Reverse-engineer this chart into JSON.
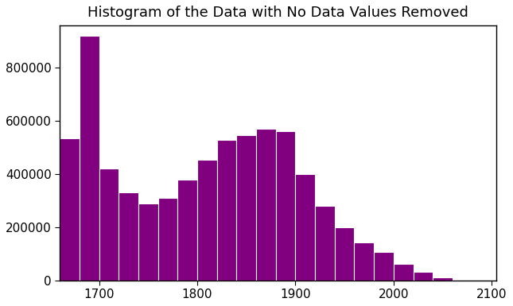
{
  "title": "Histogram of the Data with No Data Values Removed",
  "bar_color": "#800080",
  "edge_color": "white",
  "xlim": [
    1660,
    2105
  ],
  "ylim": [
    0,
    960000
  ],
  "bin_width": 20,
  "bins_left": [
    1660,
    1680,
    1700,
    1720,
    1740,
    1760,
    1780,
    1800,
    1820,
    1840,
    1860,
    1880,
    1900,
    1920,
    1940,
    1960,
    1980,
    2000,
    2020,
    2040,
    2060,
    2080
  ],
  "heights": [
    535000,
    920000,
    420000,
    330000,
    290000,
    310000,
    380000,
    455000,
    530000,
    548000,
    572000,
    562000,
    400000,
    280000,
    200000,
    143000,
    106000,
    63000,
    33000,
    10000,
    0,
    0
  ],
  "yticks": [
    0,
    200000,
    400000,
    600000,
    800000
  ],
  "xticks": [
    1700,
    1800,
    1900,
    2000,
    2100
  ],
  "title_fontsize": 13,
  "tick_fontsize": 11,
  "background_color": "#ffffff"
}
